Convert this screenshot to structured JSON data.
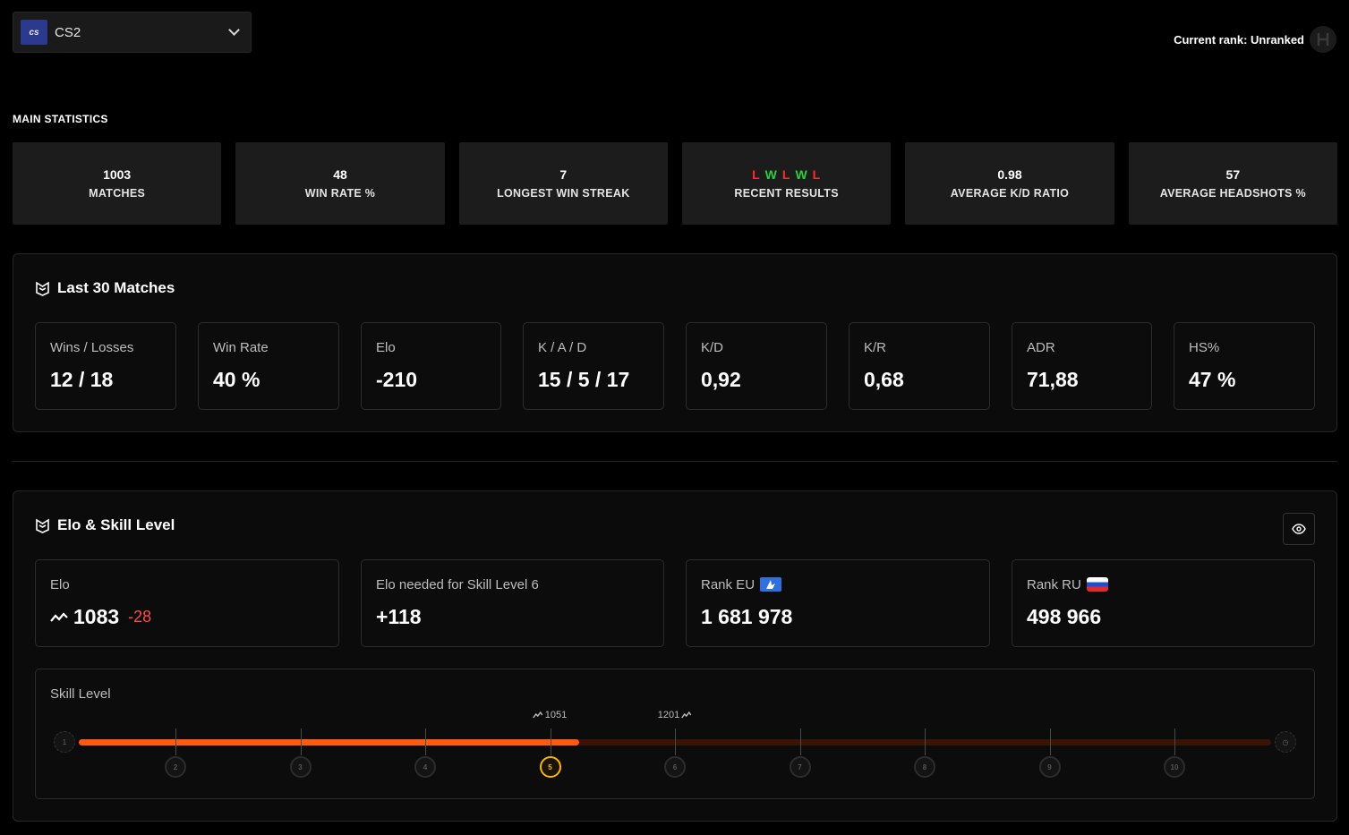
{
  "game": {
    "logo_text": "cs",
    "name": "CS2"
  },
  "current_rank": {
    "label": "Current rank: Unranked"
  },
  "main_statistics": {
    "heading": "MAIN STATISTICS",
    "matches": {
      "value": "1003",
      "label": "MATCHES"
    },
    "win_rate": {
      "value": "48",
      "label": "WIN RATE %"
    },
    "longest_streak": {
      "value": "7",
      "label": "LONGEST WIN STREAK"
    },
    "recent_results": {
      "values": [
        "L",
        "W",
        "L",
        "W",
        "L"
      ],
      "label": "RECENT RESULTS"
    },
    "kd_ratio": {
      "value": "0.98",
      "label": "AVERAGE K/D RATIO"
    },
    "headshots": {
      "value": "57",
      "label": "AVERAGE HEADSHOTS %"
    }
  },
  "last30": {
    "title": "Last 30 Matches",
    "cards": [
      {
        "label": "Wins / Losses",
        "value": "12 / 18"
      },
      {
        "label": "Win Rate",
        "value": "40 %"
      },
      {
        "label": "Elo",
        "value": "-210"
      },
      {
        "label": "K / A / D",
        "value": "15 / 5 / 17"
      },
      {
        "label": "K/D",
        "value": "0,92"
      },
      {
        "label": "K/R",
        "value": "0,68"
      },
      {
        "label": "ADR",
        "value": "71,88"
      },
      {
        "label": "HS%",
        "value": "47 %"
      }
    ]
  },
  "elo_skill": {
    "title": "Elo & Skill Level",
    "elo": {
      "label": "Elo",
      "value": "1083",
      "delta": "-28"
    },
    "needed": {
      "label": "Elo needed for Skill Level 6",
      "value": "+118"
    },
    "rank_eu": {
      "label": "Rank EU",
      "value": "1 681 978"
    },
    "rank_ru": {
      "label": "Rank RU",
      "value": "498 966"
    },
    "skill": {
      "label": "Skill Level",
      "current_level": 5,
      "progress": 0.42,
      "levels": [
        "1",
        "2",
        "3",
        "4",
        "5",
        "6",
        "7",
        "8",
        "9",
        "10"
      ],
      "lower_bound": "1051",
      "upper_bound": "1201"
    }
  },
  "colors": {
    "accent": "#ff5a0f",
    "win": "#2ecc40",
    "loss": "#ff2b2b",
    "current_level": "#ffb400"
  }
}
